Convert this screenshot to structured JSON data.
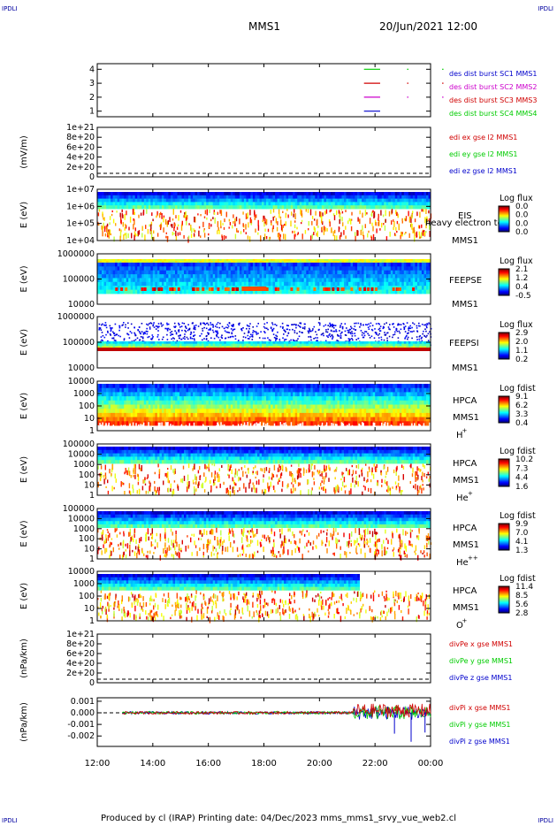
{
  "header": {
    "corner_label": "IPDLI",
    "spacecraft": "MMS1",
    "datetime": "20/Jun/2021 12:00"
  },
  "footer": {
    "text": "Produced by cl (IRAP)    Printing date: 04/Dec/2023    mms_mms1_srvy_vue_web2.cl"
  },
  "colors": {
    "black": "#000000",
    "blue": "#0000cc",
    "red": "#d00000",
    "green": "#00cc00",
    "magenta": "#cc00cc"
  },
  "chart_data": [
    {
      "id": "burst",
      "type": "line",
      "yticks": [
        "1",
        "2",
        "3",
        "4"
      ],
      "ylim": [
        0.6,
        4.4
      ],
      "legend": [
        {
          "label": "des dist burst SC1 MMS1",
          "color": "#0000cc"
        },
        {
          "label": "des dist burst SC2 MMS2",
          "color": "#cc00cc"
        },
        {
          "label": "des dist burst SC3 MMS3",
          "color": "#d00000"
        },
        {
          "label": "des dist burst SC4 MMS4",
          "color": "#00cc00"
        }
      ],
      "series": [
        {
          "y": 4,
          "color": "#00cc00",
          "x": [
            [
              21.9,
              22.5
            ],
            [
              23.5,
              23.55
            ],
            [
              24.8,
              24.85
            ]
          ]
        },
        {
          "y": 3,
          "color": "#d00000",
          "x": [
            [
              21.9,
              22.5
            ],
            [
              23.5,
              23.55
            ],
            [
              24.8,
              24.85
            ]
          ]
        },
        {
          "y": 2,
          "color": "#cc00cc",
          "x": [
            [
              21.9,
              22.5
            ],
            [
              23.5,
              23.55
            ],
            [
              24.8,
              24.85
            ]
          ]
        },
        {
          "y": 1,
          "color": "#0000cc",
          "x": [
            [
              21.9,
              22.5
            ]
          ]
        }
      ]
    },
    {
      "id": "edi",
      "type": "line",
      "ylabel": "(mV/m)",
      "yticks": [
        "0",
        "2e+20",
        "4e+20",
        "6e+20",
        "8e+20",
        "1e+21"
      ],
      "legend": [
        {
          "label": "edi ex gse l2 MMS1",
          "color": "#d00000"
        },
        {
          "label": "edi ey gse l2 MMS1",
          "color": "#00cc00"
        },
        {
          "label": "edi ez gse l2 MMS1",
          "color": "#0000cc"
        }
      ]
    },
    {
      "id": "eis",
      "type": "heatmap",
      "ylabel": "E (eV)",
      "yticks": [
        "1e+04",
        "1e+05",
        "1e+06",
        "1e+07"
      ],
      "side_labels": [
        "EIS",
        "MMS1"
      ],
      "overlay_text": "heavy electron tof",
      "colorbar": {
        "title": "Log flux",
        "ticks": [
          "0.0",
          "0.0",
          "0.0",
          "0.0"
        ]
      }
    },
    {
      "id": "feepse",
      "type": "heatmap",
      "ylabel": "E (eV)",
      "yticks": [
        "10000",
        "100000",
        "1000000"
      ],
      "side_labels": [
        "FEEPSE",
        "MMS1"
      ],
      "colorbar": {
        "title": "Log flux",
        "ticks": [
          "2.1",
          "1.2",
          "0.4",
          "-0.5"
        ]
      }
    },
    {
      "id": "feepsi",
      "type": "heatmap",
      "ylabel": "E (eV)",
      "yticks": [
        "10000",
        "100000",
        "1000000"
      ],
      "side_labels": [
        "FEEPSI",
        "MMS1"
      ],
      "colorbar": {
        "title": "Log flux",
        "ticks": [
          "2.9",
          "2.0",
          "1.1",
          "0.2"
        ]
      }
    },
    {
      "id": "hpca_h",
      "type": "heatmap",
      "ylabel": "E (eV)",
      "yticks": [
        "1",
        "10",
        "100",
        "1000",
        "10000"
      ],
      "side_labels": [
        "HPCA",
        "MMS1",
        "H",
        "+"
      ],
      "colorbar": {
        "title": "Log fdist",
        "ticks": [
          "9.1",
          "6.2",
          "3.3",
          "0.4"
        ]
      }
    },
    {
      "id": "hpca_he",
      "type": "heatmap",
      "ylabel": "E (eV)",
      "yticks": [
        "1",
        "10",
        "100",
        "1000",
        "10000",
        "100000"
      ],
      "side_labels": [
        "HPCA",
        "MMS1",
        "He",
        "+"
      ],
      "colorbar": {
        "title": "Log fdist",
        "ticks": [
          "10.2",
          "7.3",
          "4.4",
          "1.6"
        ]
      }
    },
    {
      "id": "hpca_hepp",
      "type": "heatmap",
      "ylabel": "E (eV)",
      "yticks": [
        "1",
        "10",
        "100",
        "1000",
        "10000",
        "100000"
      ],
      "side_labels": [
        "HPCA",
        "MMS1",
        "He",
        "++"
      ],
      "colorbar": {
        "title": "Log fdist",
        "ticks": [
          "9.9",
          "7.0",
          "4.1",
          "1.3"
        ]
      }
    },
    {
      "id": "hpca_o",
      "type": "heatmap",
      "ylabel": "E (eV)",
      "yticks": [
        "1",
        "10",
        "100",
        "1000",
        "10000"
      ],
      "side_labels": [
        "HPCA",
        "MMS1",
        "O",
        "+"
      ],
      "colorbar": {
        "title": "Log fdist",
        "ticks": [
          "11.4",
          "8.5",
          "5.6",
          "2.8"
        ]
      }
    },
    {
      "id": "divpe",
      "type": "line",
      "ylabel": "(nPa/km)",
      "yticks": [
        "0",
        "2e+20",
        "4e+20",
        "6e+20",
        "8e+20",
        "1e+21"
      ],
      "legend": [
        {
          "label": "divPe x gse MMS1",
          "color": "#d00000"
        },
        {
          "label": "divPe y gse MMS1",
          "color": "#00cc00"
        },
        {
          "label": "divPe z gse MMS1",
          "color": "#0000cc"
        }
      ]
    },
    {
      "id": "divpi",
      "type": "line",
      "ylabel": "(nPa/km)",
      "yticks": [
        "-0.002",
        "-0.001",
        "0.000",
        "0.001"
      ],
      "ylim": [
        -0.0029,
        0.0013
      ],
      "legend": [
        {
          "label": "divPi x gse MMS1",
          "color": "#d00000"
        },
        {
          "label": "divPi y gse MMS1",
          "color": "#00cc00"
        },
        {
          "label": "divPi z gse MMS1",
          "color": "#0000cc"
        }
      ]
    }
  ],
  "xaxis": {
    "ticks": [
      "12:00",
      "14:00",
      "16:00",
      "18:00",
      "20:00",
      "22:00",
      "00:00"
    ]
  }
}
